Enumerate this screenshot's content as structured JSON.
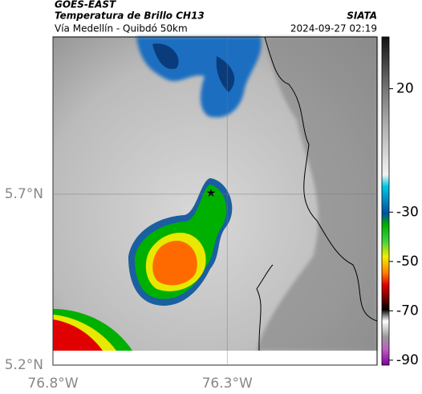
{
  "header": {
    "source": "GOES-EAST",
    "title": "Temperatura de Brillo CH13",
    "subtitle": "Vía Medellín - Quibdó 50km",
    "brand": "SIATA",
    "timestamp": "2024-09-27 02:19"
  },
  "map": {
    "xlim": [
      -76.8,
      -75.87
    ],
    "ylim": [
      5.2,
      6.16
    ],
    "xticks": [
      {
        "value": -76.8,
        "label": "76.8°W"
      },
      {
        "value": -76.3,
        "label": "76.3°W"
      }
    ],
    "yticks": [
      {
        "value": 5.2,
        "label": "5.2°N"
      },
      {
        "value": 5.7,
        "label": "5.7°N"
      }
    ]
  },
  "colorbar": {
    "lim": [
      -92,
      41
    ],
    "ticks": [
      20,
      -30,
      -50,
      -70,
      -90
    ]
  }
}
